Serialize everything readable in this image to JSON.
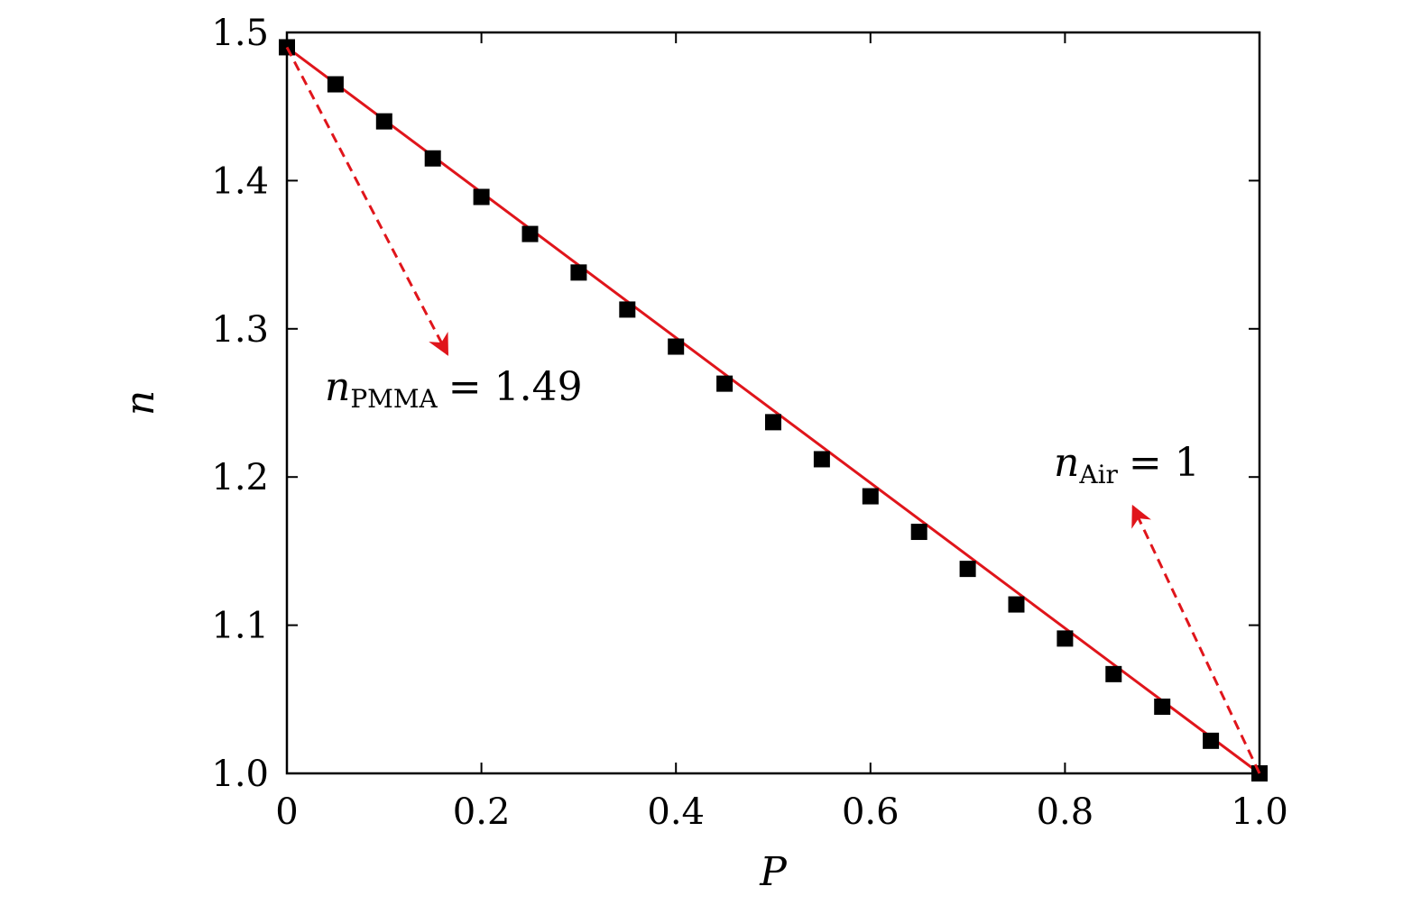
{
  "chart_data": {
    "type": "scatter",
    "title": "",
    "xlabel": "P",
    "ylabel": "n",
    "xlim": [
      0,
      1.0
    ],
    "ylim": [
      1.0,
      1.5
    ],
    "x_ticks": [
      0,
      0.2,
      0.4,
      0.6,
      0.8,
      1.0
    ],
    "x_tick_labels": [
      "0",
      "0.2",
      "0.4",
      "0.6",
      "0.8",
      "1.0"
    ],
    "y_ticks": [
      1.0,
      1.1,
      1.2,
      1.3,
      1.4,
      1.5
    ],
    "y_tick_labels": [
      "1.0",
      "1.1",
      "1.2",
      "1.3",
      "1.4",
      "1.5"
    ],
    "grid": false,
    "series": [
      {
        "name": "markers",
        "style": "black squares",
        "x": [
          0,
          0.05,
          0.1,
          0.15,
          0.2,
          0.25,
          0.3,
          0.35,
          0.4,
          0.45,
          0.5,
          0.55,
          0.6,
          0.65,
          0.7,
          0.75,
          0.8,
          0.85,
          0.9,
          0.95,
          1.0
        ],
        "y": [
          1.49,
          1.465,
          1.44,
          1.415,
          1.389,
          1.364,
          1.338,
          1.313,
          1.288,
          1.263,
          1.237,
          1.212,
          1.187,
          1.163,
          1.138,
          1.114,
          1.091,
          1.067,
          1.045,
          1.022,
          1.0
        ]
      },
      {
        "name": "fit",
        "style": "red line",
        "x": [
          0,
          1.0
        ],
        "y": [
          1.49,
          1.0
        ]
      }
    ],
    "annotations": [
      {
        "symbol": "n",
        "subscript": "PMMA",
        "text": "= 1.49",
        "arrow_from": [
          0.0,
          1.49
        ],
        "arrow_to": [
          0.165,
          1.283
        ]
      },
      {
        "symbol": "n",
        "subscript": "Air",
        "text": "= 1",
        "arrow_from": [
          1.0,
          1.0
        ],
        "arrow_to": [
          0.87,
          1.18
        ]
      }
    ],
    "colors": {
      "line": "#e0151b",
      "marker": "#000000",
      "arrow": "#e0151b"
    }
  }
}
